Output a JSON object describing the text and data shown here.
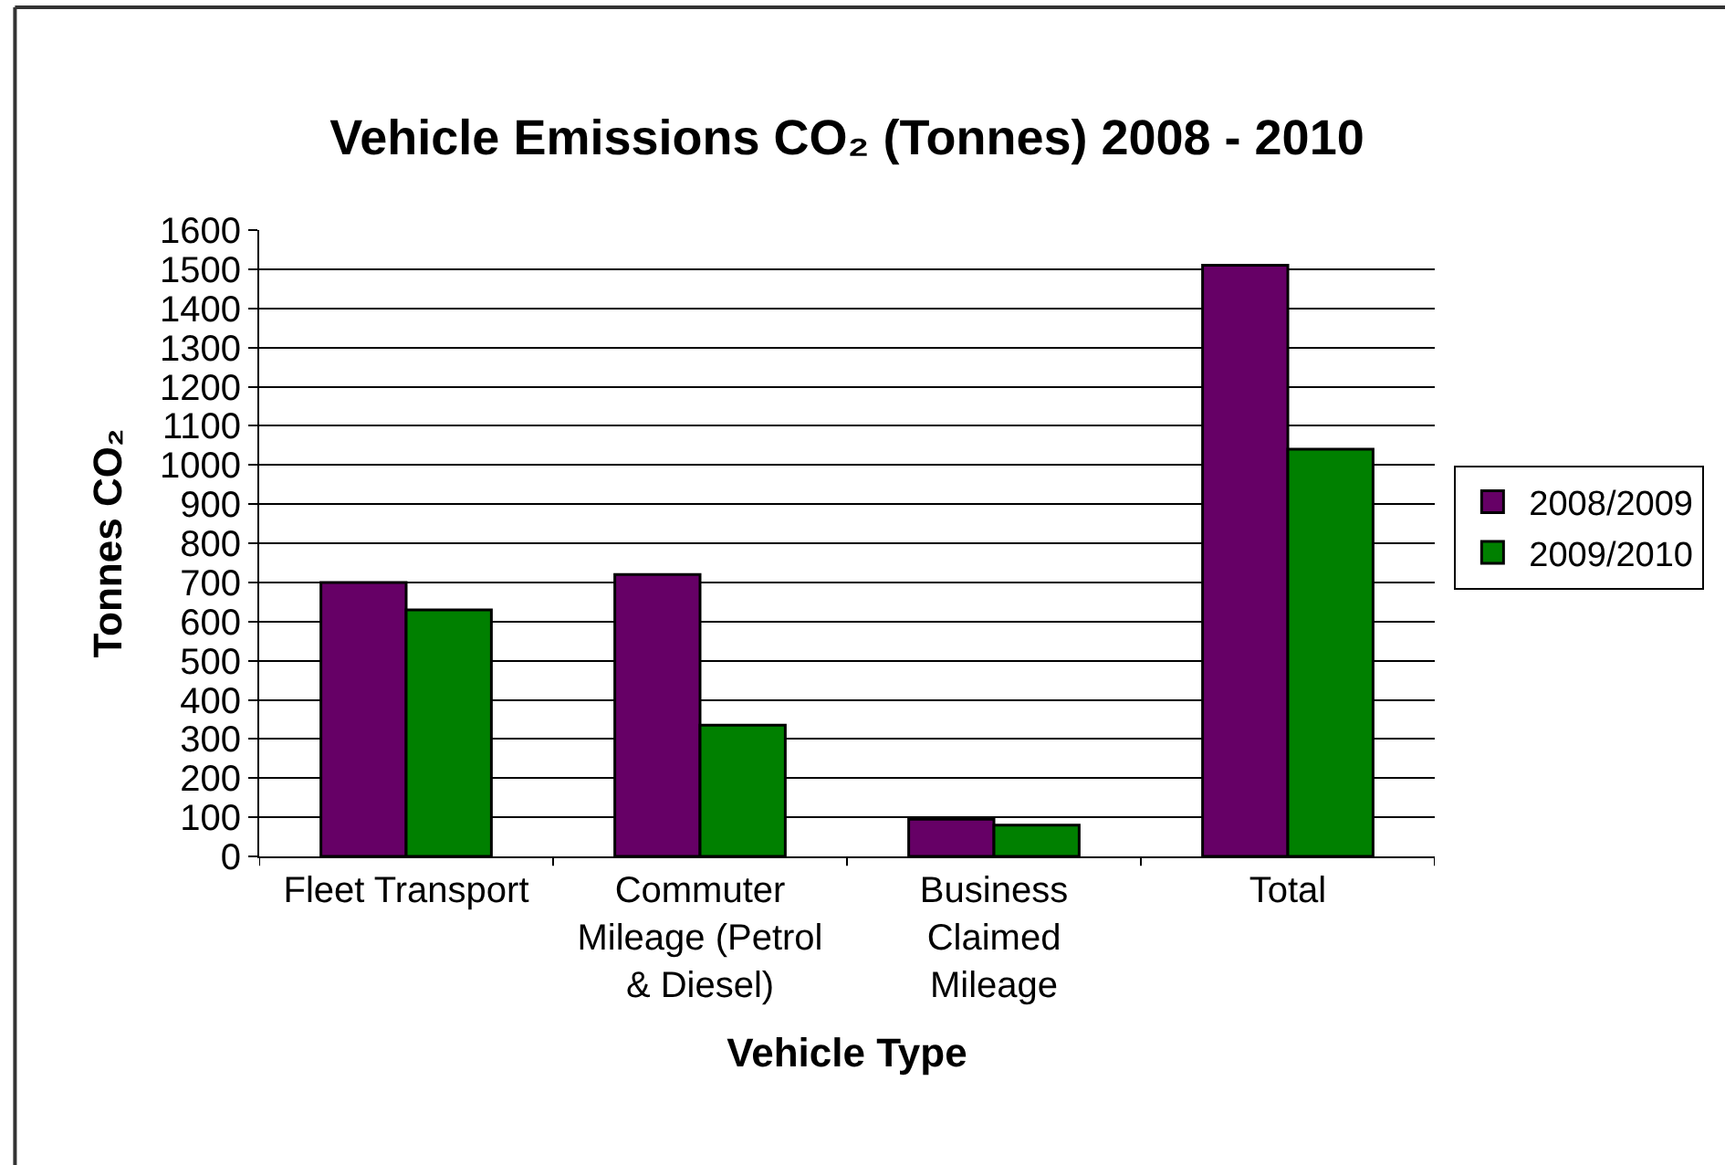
{
  "chart_data": {
    "type": "bar",
    "title": "Vehicle Emissions CO₂ (Tonnes) 2008 - 2010",
    "xlabel": "Vehicle Type",
    "ylabel": "Tonnes CO₂",
    "categories": [
      "Fleet Transport",
      "Commuter Mileage (Petrol & Diesel)",
      "Business Claimed Mileage",
      "Total"
    ],
    "series": [
      {
        "name": "2008/2009",
        "color": "#660066",
        "values": [
          700,
          720,
          95,
          1510
        ]
      },
      {
        "name": "2009/2010",
        "color": "#008000",
        "values": [
          630,
          335,
          80,
          1040
        ]
      }
    ],
    "ylim": [
      0,
      1600
    ],
    "yticks": [
      0,
      100,
      200,
      300,
      400,
      500,
      600,
      700,
      800,
      900,
      1000,
      1100,
      1200,
      1300,
      1400,
      1500,
      1600
    ],
    "grid": "y",
    "legend": "right"
  }
}
